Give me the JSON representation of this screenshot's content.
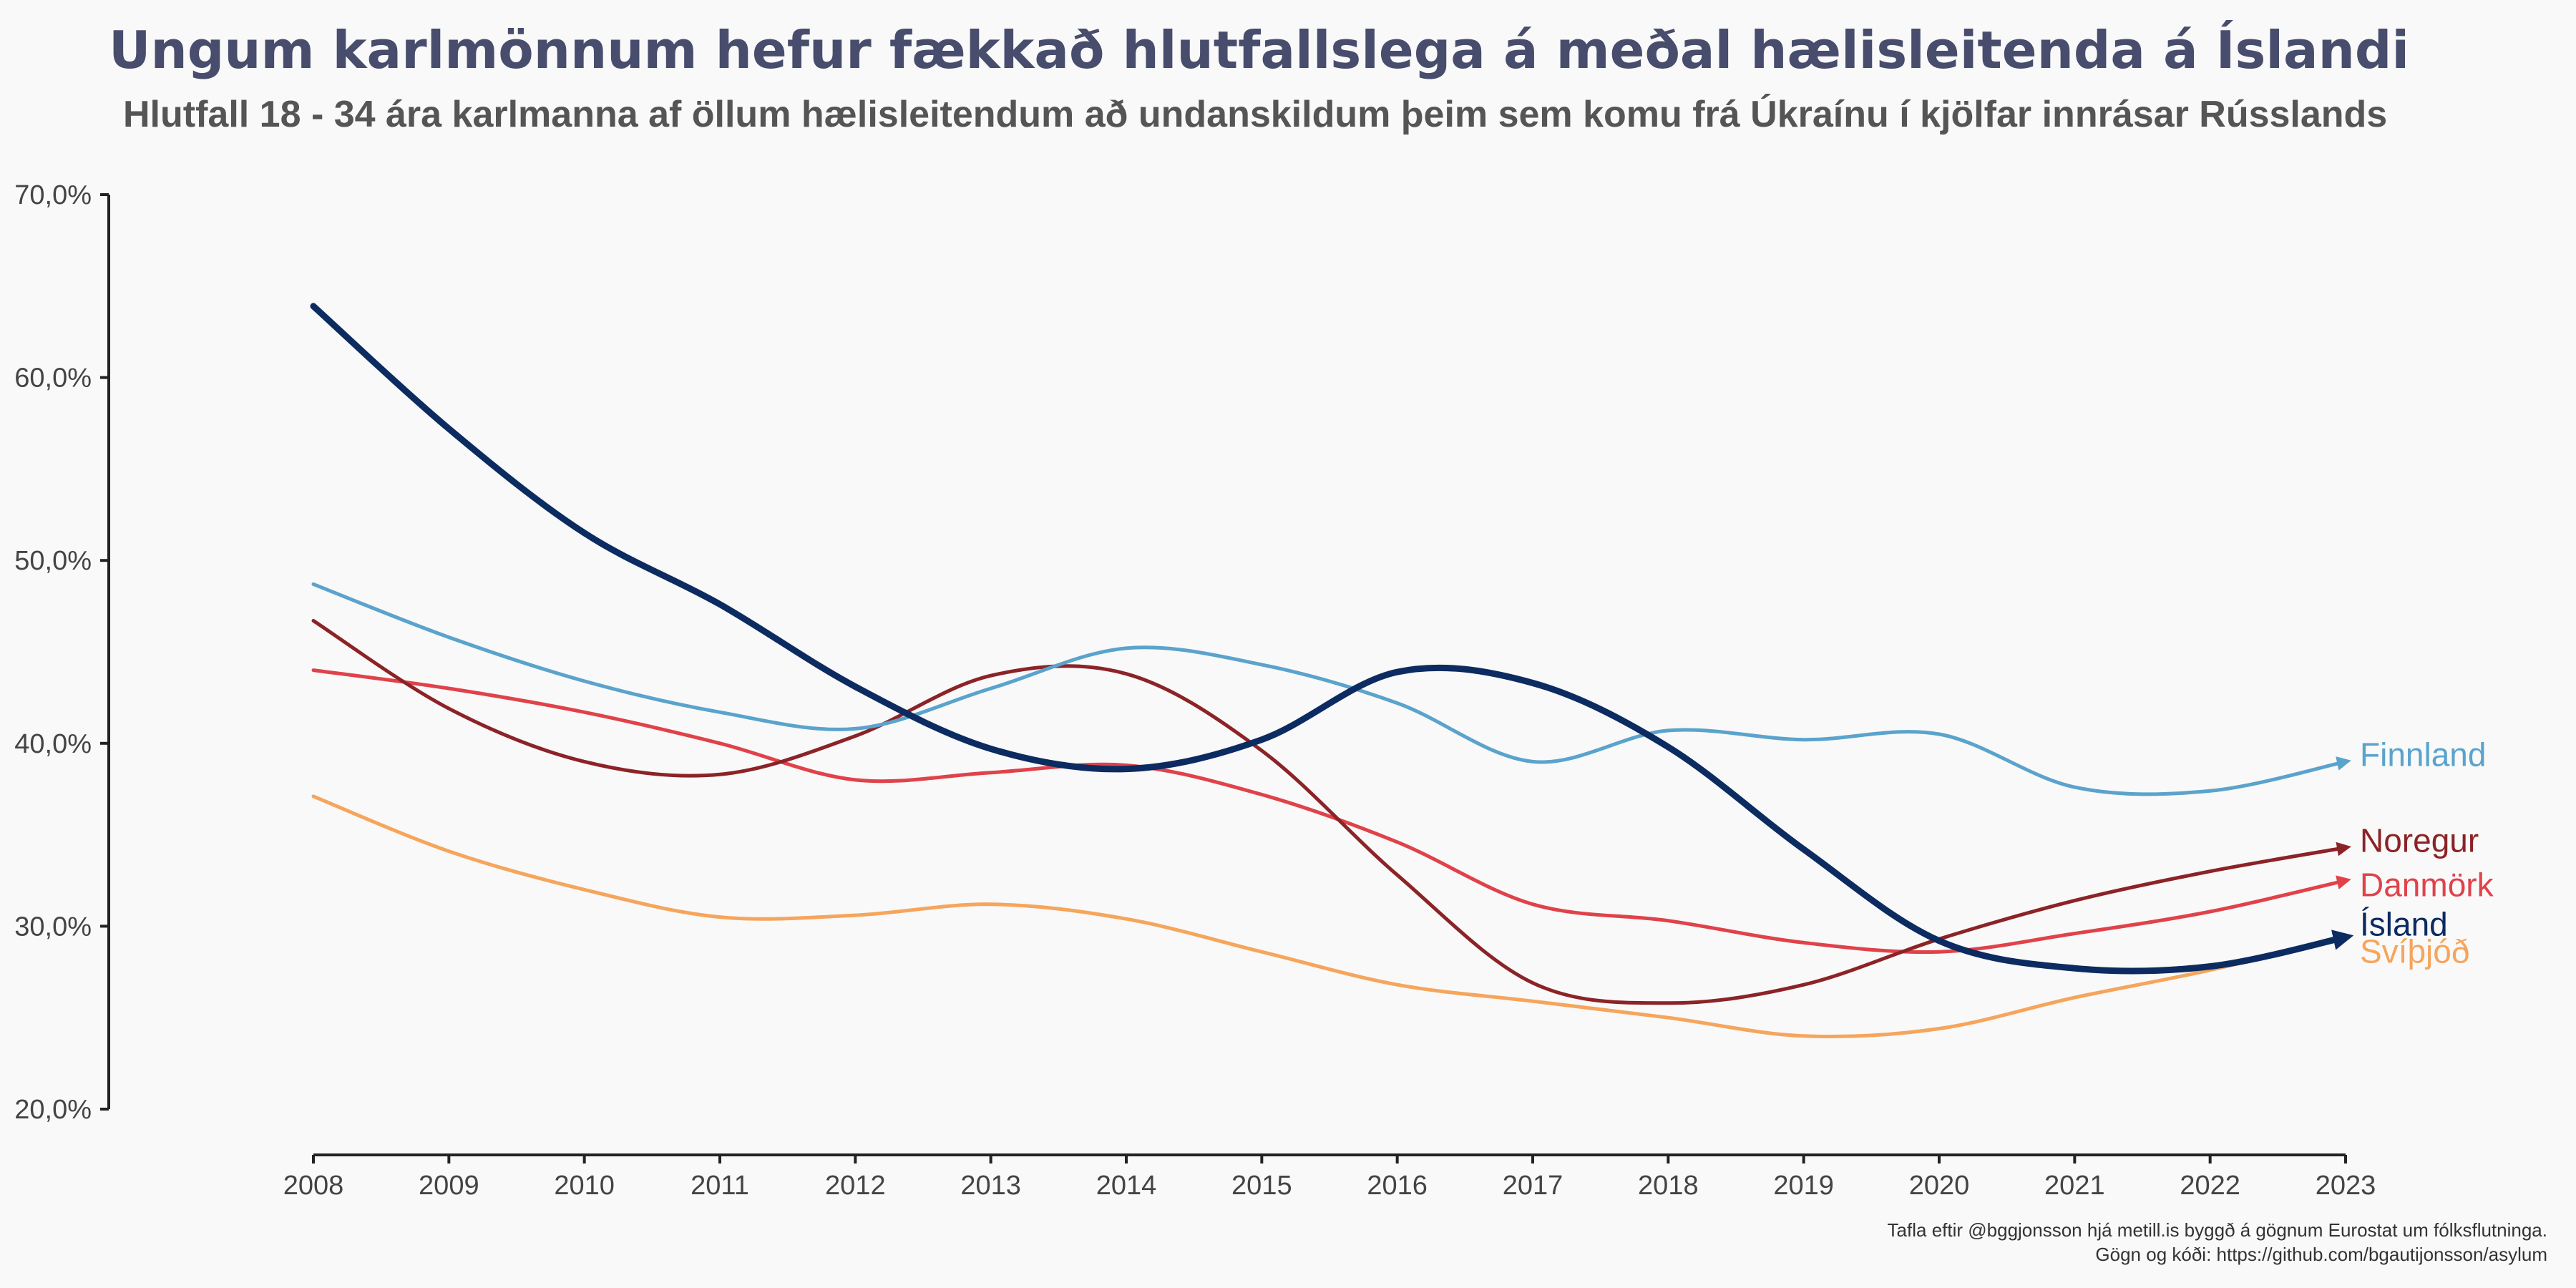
{
  "title": "Ungum karlmönnum hefur fækkað hlutfallslega á meðal hælisleitenda á Íslandi",
  "subtitle": "Hlutfall 18 - 34 ára karlmanna af öllum hælisleitendum að undanskildum þeim sem komu frá Úkraínu í kjölfar innrásar Rússlands",
  "caption": {
    "line1": "Tafla eftir @bggjonsson hjá metill.is byggð á gögnum Eurostat um fólksflutninga.",
    "line2": "Gögn og kóði: https://github.com/bgautijonsson/asylum"
  },
  "chart_data": {
    "type": "line",
    "title": "Ungum karlmönnum hefur fækkað hlutfallslega á meðal hælisleitenda á Íslandi",
    "subtitle": "Hlutfall 18 - 34 ára karlmanna af öllum hælisleitendum að undanskildum þeim sem komu frá Úkraínu í kjölfar innrásar Rússlands",
    "xlabel": "",
    "ylabel": "",
    "grid": false,
    "xlim": [
      2008,
      2023
    ],
    "ylim": [
      20,
      70
    ],
    "x": [
      2008,
      2009,
      2010,
      2011,
      2012,
      2013,
      2014,
      2015,
      2016,
      2017,
      2018,
      2019,
      2020,
      2021,
      2022,
      2023
    ],
    "x_ticks": [
      "2008",
      "2009",
      "2010",
      "2011",
      "2012",
      "2013",
      "2014",
      "2015",
      "2016",
      "2017",
      "2018",
      "2019",
      "2020",
      "2021",
      "2022",
      "2023"
    ],
    "y_ticks": [
      {
        "value": 70,
        "label": "70,0%"
      },
      {
        "value": 60,
        "label": "60,0%"
      },
      {
        "value": 50,
        "label": "50,0%"
      },
      {
        "value": 40,
        "label": "40,0%"
      },
      {
        "value": 30,
        "label": "30,0%"
      },
      {
        "value": 20,
        "label": "20,0%"
      }
    ],
    "legend": "direct labels at line ends",
    "series": [
      {
        "name": "Svíþjóð",
        "color": "#f6a55c",
        "width": 5,
        "label_offset": 20,
        "values": [
          37.1,
          34.1,
          32.0,
          30.5,
          30.6,
          31.2,
          30.4,
          28.6,
          26.8,
          25.9,
          25.0,
          24.0,
          24.4,
          26.1,
          27.6,
          29.4
        ]
      },
      {
        "name": "Danmörk",
        "color": "#e0424a",
        "width": 5,
        "label_offset": 6,
        "values": [
          44.0,
          43.0,
          41.7,
          40.0,
          38.0,
          38.4,
          38.8,
          37.2,
          34.6,
          31.2,
          30.3,
          29.1,
          28.6,
          29.6,
          30.8,
          32.5
        ]
      },
      {
        "name": "Noregur",
        "color": "#8b2327",
        "width": 5,
        "label_offset": -10,
        "values": [
          46.7,
          41.9,
          39.0,
          38.3,
          40.4,
          43.7,
          43.8,
          39.6,
          32.8,
          26.9,
          25.8,
          26.8,
          29.3,
          31.4,
          33.0,
          34.3
        ]
      },
      {
        "name": "Finnland",
        "color": "#5aa3cc",
        "width": 5,
        "label_offset": -10,
        "values": [
          48.7,
          45.8,
          43.4,
          41.7,
          40.8,
          43.0,
          45.2,
          44.3,
          42.2,
          39.0,
          40.7,
          40.2,
          40.5,
          37.6,
          37.4,
          39.0
        ]
      },
      {
        "name": "Ísland",
        "color": "#0c2b60",
        "width": 9,
        "label_offset": -18,
        "values": [
          63.9,
          57.2,
          51.5,
          47.6,
          43.1,
          39.7,
          38.6,
          40.2,
          43.9,
          43.3,
          39.8,
          34.2,
          29.2,
          27.7,
          27.8,
          29.4
        ]
      }
    ]
  }
}
